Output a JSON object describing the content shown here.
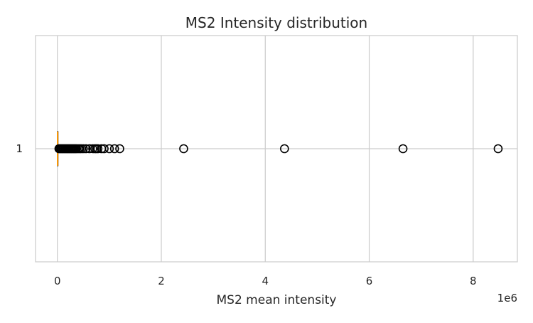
{
  "chart_data": {
    "type": "boxplot",
    "orientation": "horizontal",
    "title": "MS2 Intensity distribution",
    "xlabel": "MS2 mean intensity",
    "ylabel": "",
    "offset_text": "1e6",
    "x_scale": 1000000,
    "xlim": [
      -0.42,
      8.85
    ],
    "x_ticks": [
      0,
      2,
      4,
      6,
      8
    ],
    "categories": [
      "1"
    ],
    "grid": true,
    "box": {
      "q1": 0.0,
      "median": 0.005,
      "q3": 0.01,
      "whisker_low": 0.0,
      "whisker_high": 0.02
    },
    "outliers": [
      0.03,
      0.05,
      0.07,
      0.09,
      0.11,
      0.13,
      0.15,
      0.17,
      0.19,
      0.21,
      0.23,
      0.25,
      0.27,
      0.29,
      0.31,
      0.33,
      0.35,
      0.37,
      0.4,
      0.43,
      0.46,
      0.5,
      0.55,
      0.62,
      0.68,
      0.72,
      0.75,
      0.78,
      0.85,
      0.9,
      1.0,
      1.1,
      1.2,
      2.43,
      4.37,
      6.65,
      8.48
    ],
    "colors": {
      "median": "#ff9900",
      "grid": "#cccccc",
      "frame": "#cccccc",
      "marker_edge": "#000000",
      "text": "#262626"
    }
  }
}
